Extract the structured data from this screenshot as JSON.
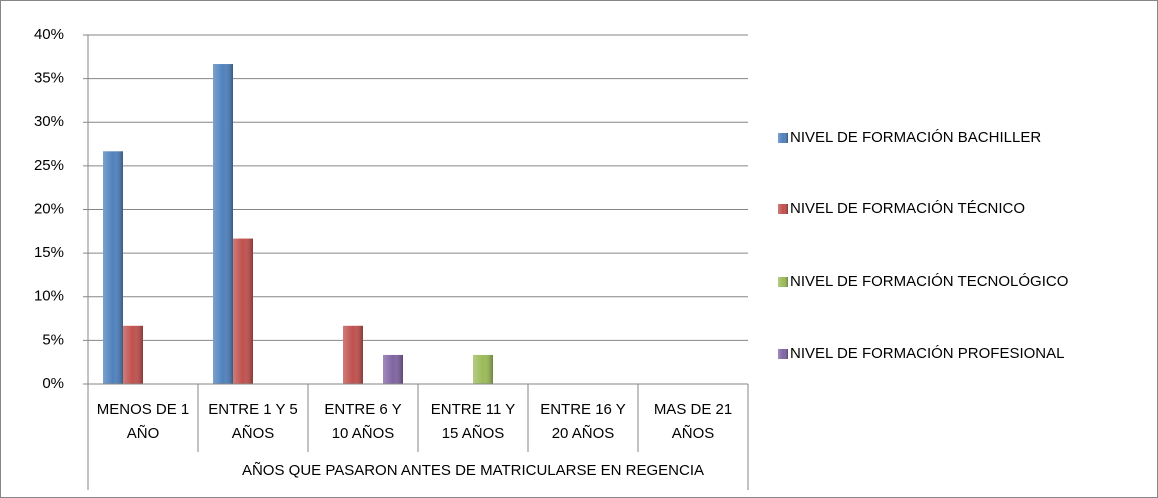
{
  "chart_data": {
    "type": "bar",
    "categories": [
      [
        "MENOS DE 1",
        "AÑO"
      ],
      [
        "ENTRE 1 Y 5",
        "AÑOS"
      ],
      [
        "ENTRE 6 Y",
        "10 AÑOS"
      ],
      [
        "ENTRE 11 Y",
        "15 AÑOS"
      ],
      [
        "ENTRE 16 Y",
        "20 AÑOS"
      ],
      [
        "MAS DE 21",
        "AÑOS"
      ]
    ],
    "x_label": "AÑOS QUE PASARON ANTES DE MATRICULARSE EN REGENCIA",
    "series": [
      {
        "name": "NIVEL DE FORMACIÓN BACHILLER",
        "color": "#4f81bd",
        "values": [
          26.67,
          36.67,
          0,
          0,
          0,
          0
        ]
      },
      {
        "name": "NIVEL DE FORMACIÓN TÉCNICO",
        "color": "#c0504d",
        "values": [
          6.67,
          16.67,
          6.67,
          0,
          0,
          0
        ]
      },
      {
        "name": "NIVEL DE FORMACIÓN TECNOLÓGICO",
        "color": "#9bbb59",
        "values": [
          0,
          0,
          0,
          3.33,
          0,
          0
        ]
      },
      {
        "name": "NIVEL DE FORMACIÓN PROFESIONAL",
        "color": "#8064a2",
        "values": [
          0,
          0,
          3.33,
          0,
          0,
          0
        ]
      }
    ],
    "ylim": [
      0,
      40
    ],
    "yticks": [
      {
        "value": 0,
        "label": "0%"
      },
      {
        "value": 5,
        "label": "5%"
      },
      {
        "value": 10,
        "label": "10%"
      },
      {
        "value": 15,
        "label": "15%"
      },
      {
        "value": 20,
        "label": "20%"
      },
      {
        "value": 25,
        "label": "25%"
      },
      {
        "value": 30,
        "label": "30%"
      },
      {
        "value": 35,
        "label": "35%"
      },
      {
        "value": 40,
        "label": "40%"
      }
    ],
    "grid": true,
    "legend": "right"
  }
}
